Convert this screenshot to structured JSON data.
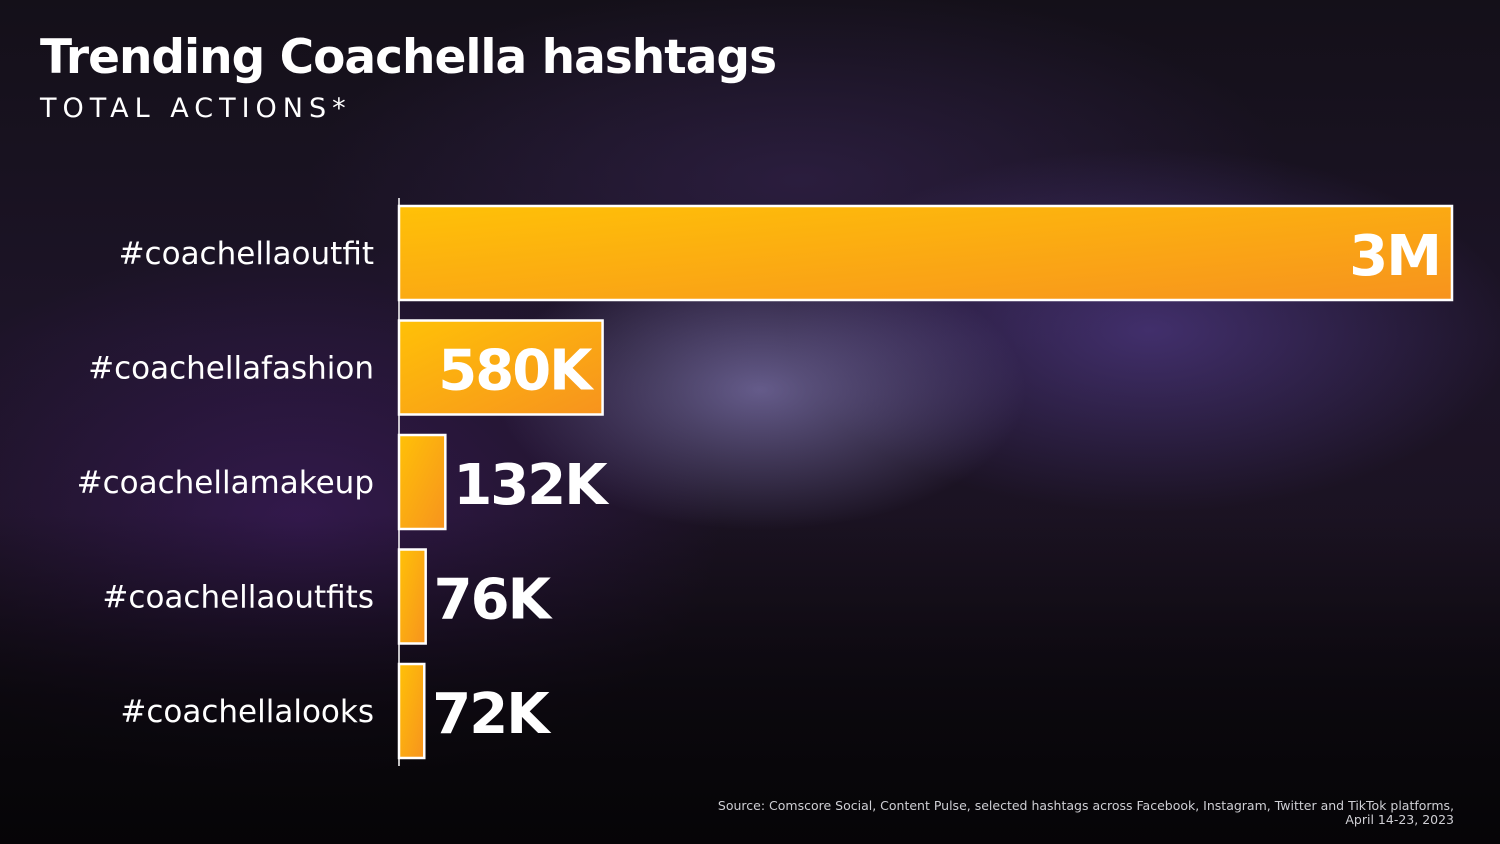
{
  "title": "Trending Coachella hashtags",
  "subtitle": "TOTAL ACTIONS*",
  "source_note": "Source: Comscore Social, Content Pulse, selected hashtags across Facebook, Instagram, Twitter and TikTok platforms, April 14-23, 2023",
  "chart_data": {
    "type": "bar",
    "orientation": "horizontal",
    "title": "Trending Coachella hashtags",
    "subtitle": "TOTAL ACTIONS*",
    "categories": [
      "#coachellaoutfit",
      "#coachellafashion",
      "#coachellamakeup",
      "#coachellaoutfits",
      "#coachellalooks"
    ],
    "values": [
      3000000,
      580000,
      132000,
      76000,
      72000
    ],
    "data_labels": [
      "3M",
      "580K",
      "132K",
      "76K",
      "72K"
    ],
    "xlim": [
      0,
      3000000
    ],
    "grid": false,
    "legend": "none",
    "colors": {
      "bar_start": "#FFC107",
      "bar_end": "#F7931E",
      "bar_border": "#FFFFFF"
    }
  }
}
